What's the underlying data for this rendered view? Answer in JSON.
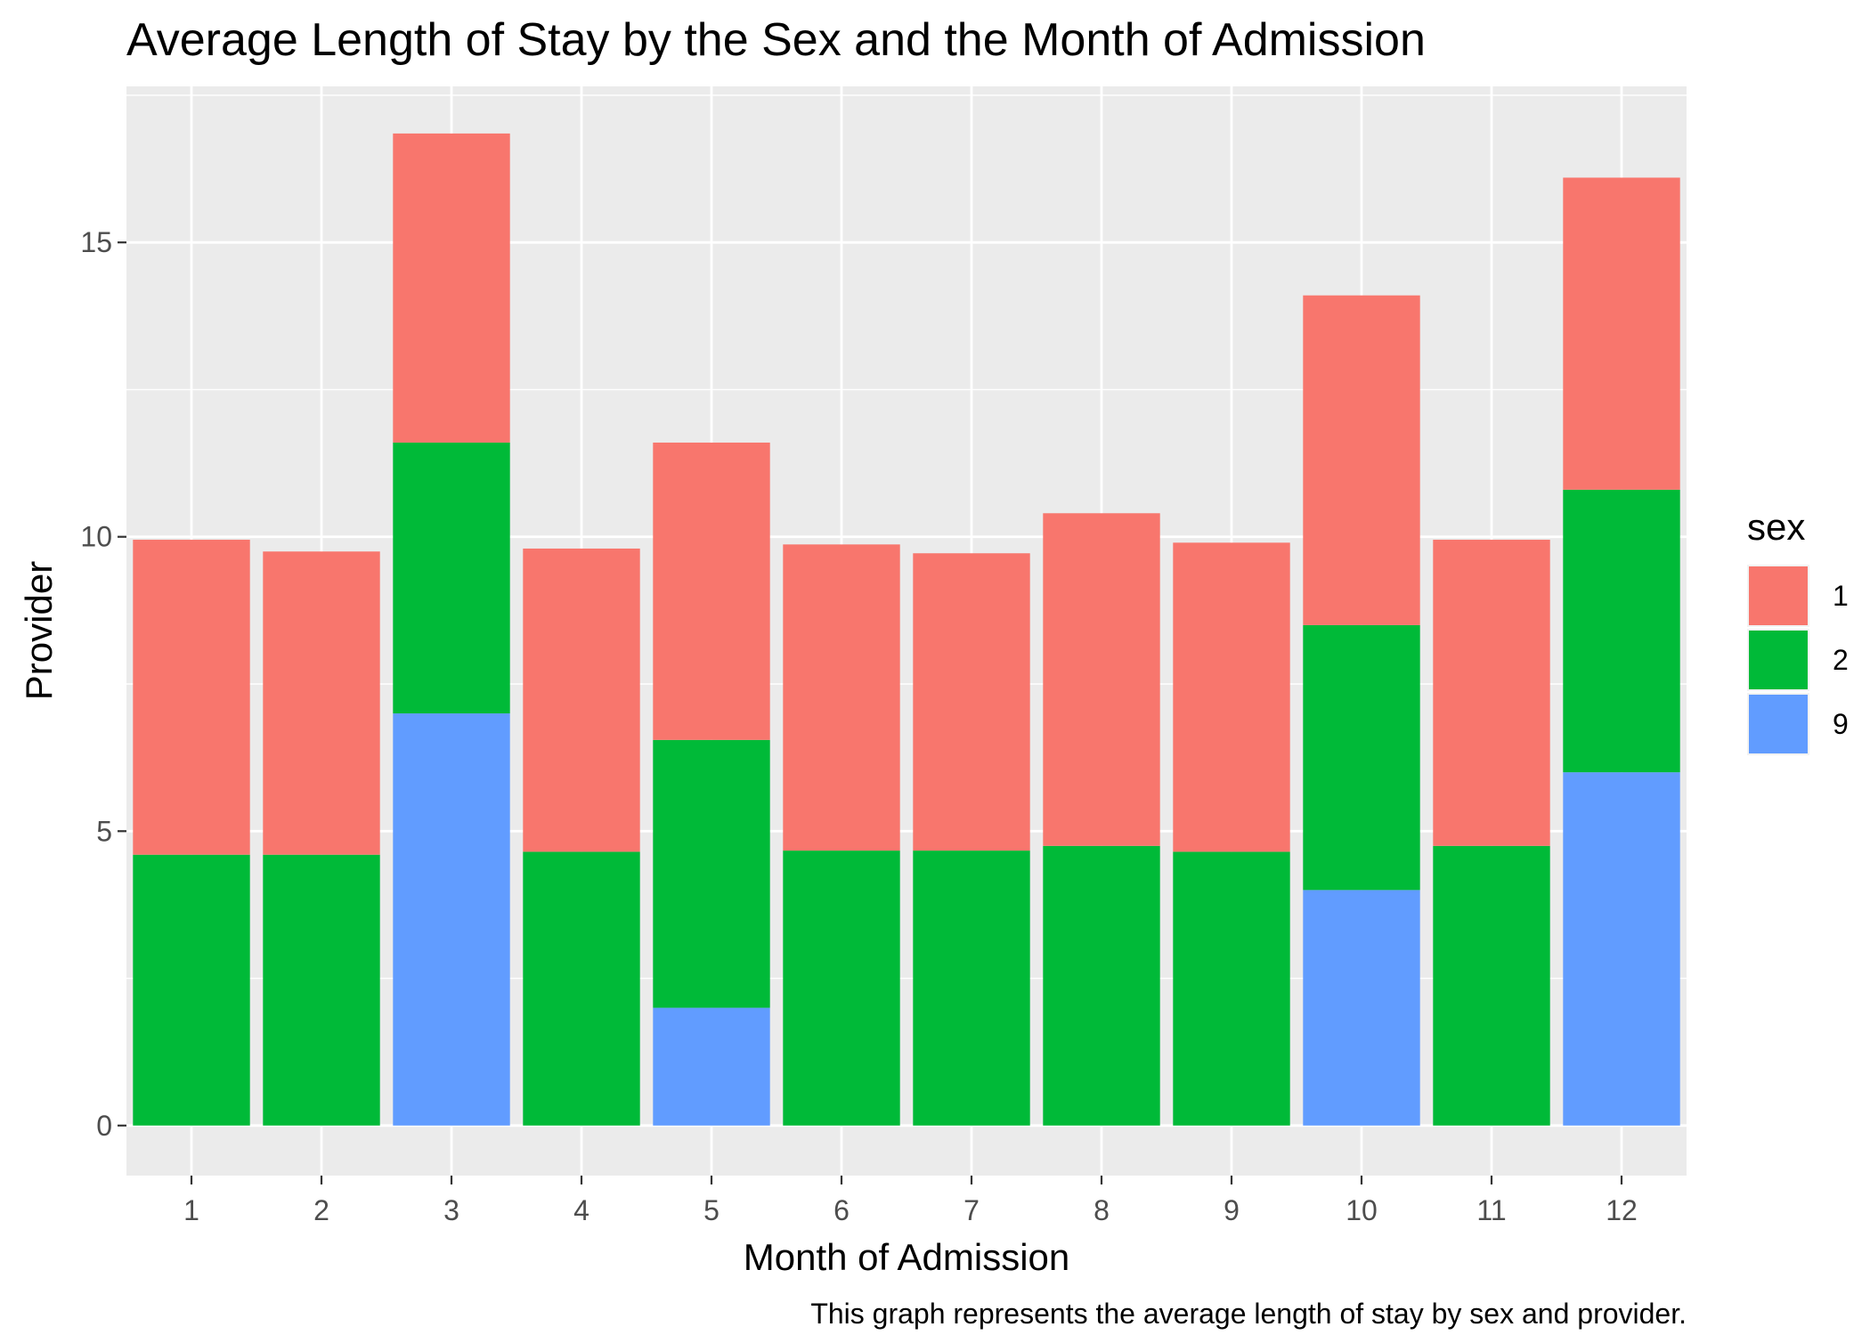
{
  "chart_data": {
    "type": "bar",
    "stacked": true,
    "title": "Average Length of Stay by the Sex and the Month of Admission",
    "xlabel": "Month of Admission",
    "ylabel": "Provider",
    "caption": "This graph represents the average length of stay by sex and provider.",
    "legend_title": "sex",
    "legend_position": "right",
    "grid": true,
    "categories": [
      "1",
      "2",
      "3",
      "4",
      "5",
      "6",
      "7",
      "8",
      "9",
      "10",
      "11",
      "12"
    ],
    "yticks": [
      "0",
      "5",
      "10",
      "15"
    ],
    "ylim": [
      -0.85,
      17.65
    ],
    "stack_order": [
      "9",
      "2",
      "1"
    ],
    "series": [
      {
        "name": "1",
        "color": "#F8766D",
        "values": [
          5.35,
          5.15,
          5.25,
          5.15,
          5.05,
          5.2,
          5.05,
          5.65,
          5.25,
          5.6,
          5.2,
          5.3
        ]
      },
      {
        "name": "2",
        "color": "#00BA38",
        "values": [
          4.6,
          4.6,
          4.6,
          4.65,
          4.55,
          4.67,
          4.67,
          4.75,
          4.65,
          4.5,
          4.75,
          4.8
        ]
      },
      {
        "name": "9",
        "color": "#619CFF",
        "values": [
          0,
          0,
          7.0,
          0,
          2.0,
          0,
          0,
          0,
          0,
          4.0,
          0,
          6.0
        ]
      }
    ]
  }
}
